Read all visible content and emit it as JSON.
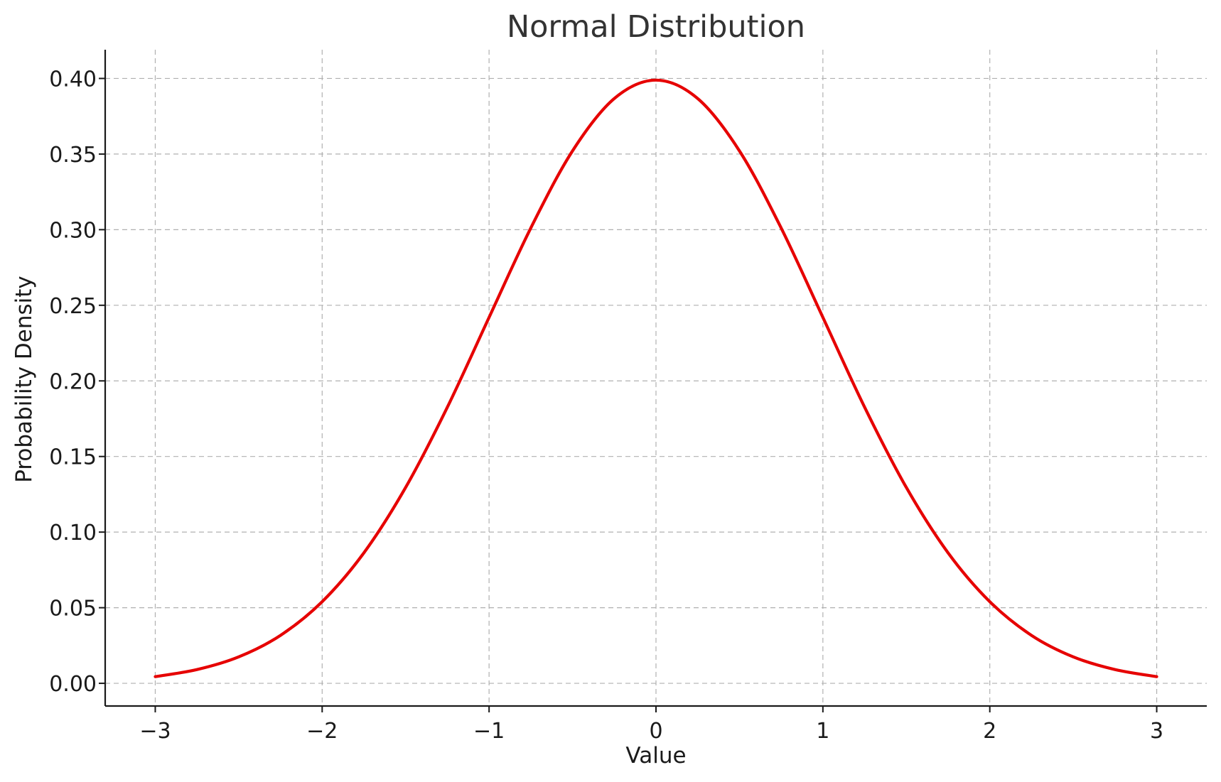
{
  "chart_data": {
    "type": "line",
    "title": "Normal Distribution",
    "xlabel": "Value",
    "ylabel": "Probability Density",
    "xlim": [
      -3.3,
      3.3
    ],
    "ylim": [
      -0.015,
      0.419
    ],
    "grid": true,
    "legend": null,
    "x_ticks": [
      -3,
      -2,
      -1,
      0,
      1,
      2,
      3
    ],
    "x_tick_labels": [
      "−3",
      "−2",
      "−1",
      "0",
      "1",
      "2",
      "3"
    ],
    "y_ticks": [
      0.0,
      0.05,
      0.1,
      0.15,
      0.2,
      0.25,
      0.3,
      0.35,
      0.4
    ],
    "y_tick_labels": [
      "0.00",
      "0.05",
      "0.10",
      "0.15",
      "0.20",
      "0.25",
      "0.30",
      "0.35",
      "0.40"
    ],
    "series": [
      {
        "color": "#e60000",
        "x": [
          -3.0,
          -2.75,
          -2.5,
          -2.25,
          -2.0,
          -1.75,
          -1.5,
          -1.25,
          -1.0,
          -0.75,
          -0.5,
          -0.25,
          0.0,
          0.25,
          0.5,
          0.75,
          1.0,
          1.25,
          1.5,
          1.75,
          2.0,
          2.25,
          2.5,
          2.75,
          3.0
        ],
        "y": [
          0.0044,
          0.0091,
          0.0175,
          0.0317,
          0.054,
          0.0863,
          0.1295,
          0.1826,
          0.242,
          0.3011,
          0.3521,
          0.3867,
          0.3989,
          0.3867,
          0.3521,
          0.3011,
          0.242,
          0.1826,
          0.1295,
          0.0863,
          0.054,
          0.0317,
          0.0175,
          0.0091,
          0.0044
        ]
      }
    ]
  }
}
